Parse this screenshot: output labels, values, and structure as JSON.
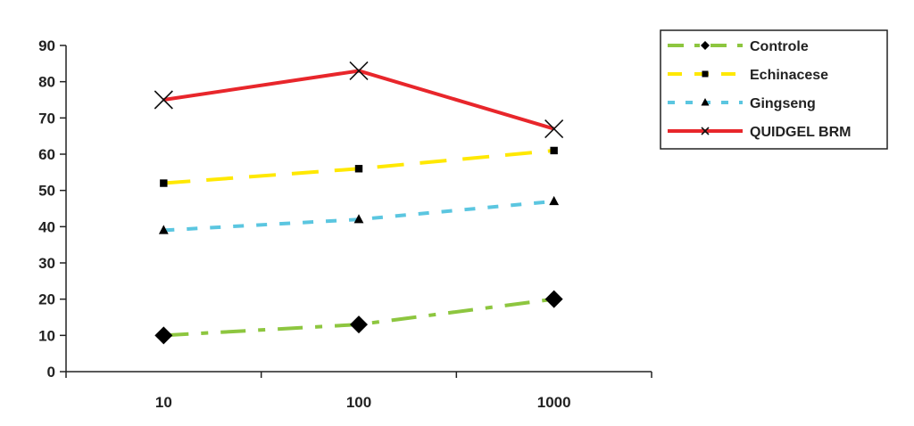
{
  "chart_data": {
    "type": "line",
    "categories": [
      "10",
      "100",
      "1000"
    ],
    "ylim": [
      0,
      90
    ],
    "yticks": [
      0,
      10,
      20,
      30,
      40,
      50,
      60,
      70,
      80,
      90
    ],
    "grid": false,
    "legend": "right",
    "series": [
      {
        "name": "Controle",
        "values": [
          10,
          13,
          20
        ],
        "color": "#8dc63f",
        "marker": "diamond",
        "dash": "long-dash-dot"
      },
      {
        "name": "Echinacese",
        "values": [
          52,
          56,
          61
        ],
        "color": "#ffe800",
        "marker": "square",
        "dash": "long-dash"
      },
      {
        "name": "Gingseng",
        "values": [
          39,
          42,
          47
        ],
        "color": "#5bc6e0",
        "marker": "triangle",
        "dash": "dash"
      },
      {
        "name": "QUIDGEL BRM",
        "values": [
          75,
          83,
          67
        ],
        "color": "#e8262b",
        "marker": "x",
        "dash": "solid"
      }
    ]
  }
}
